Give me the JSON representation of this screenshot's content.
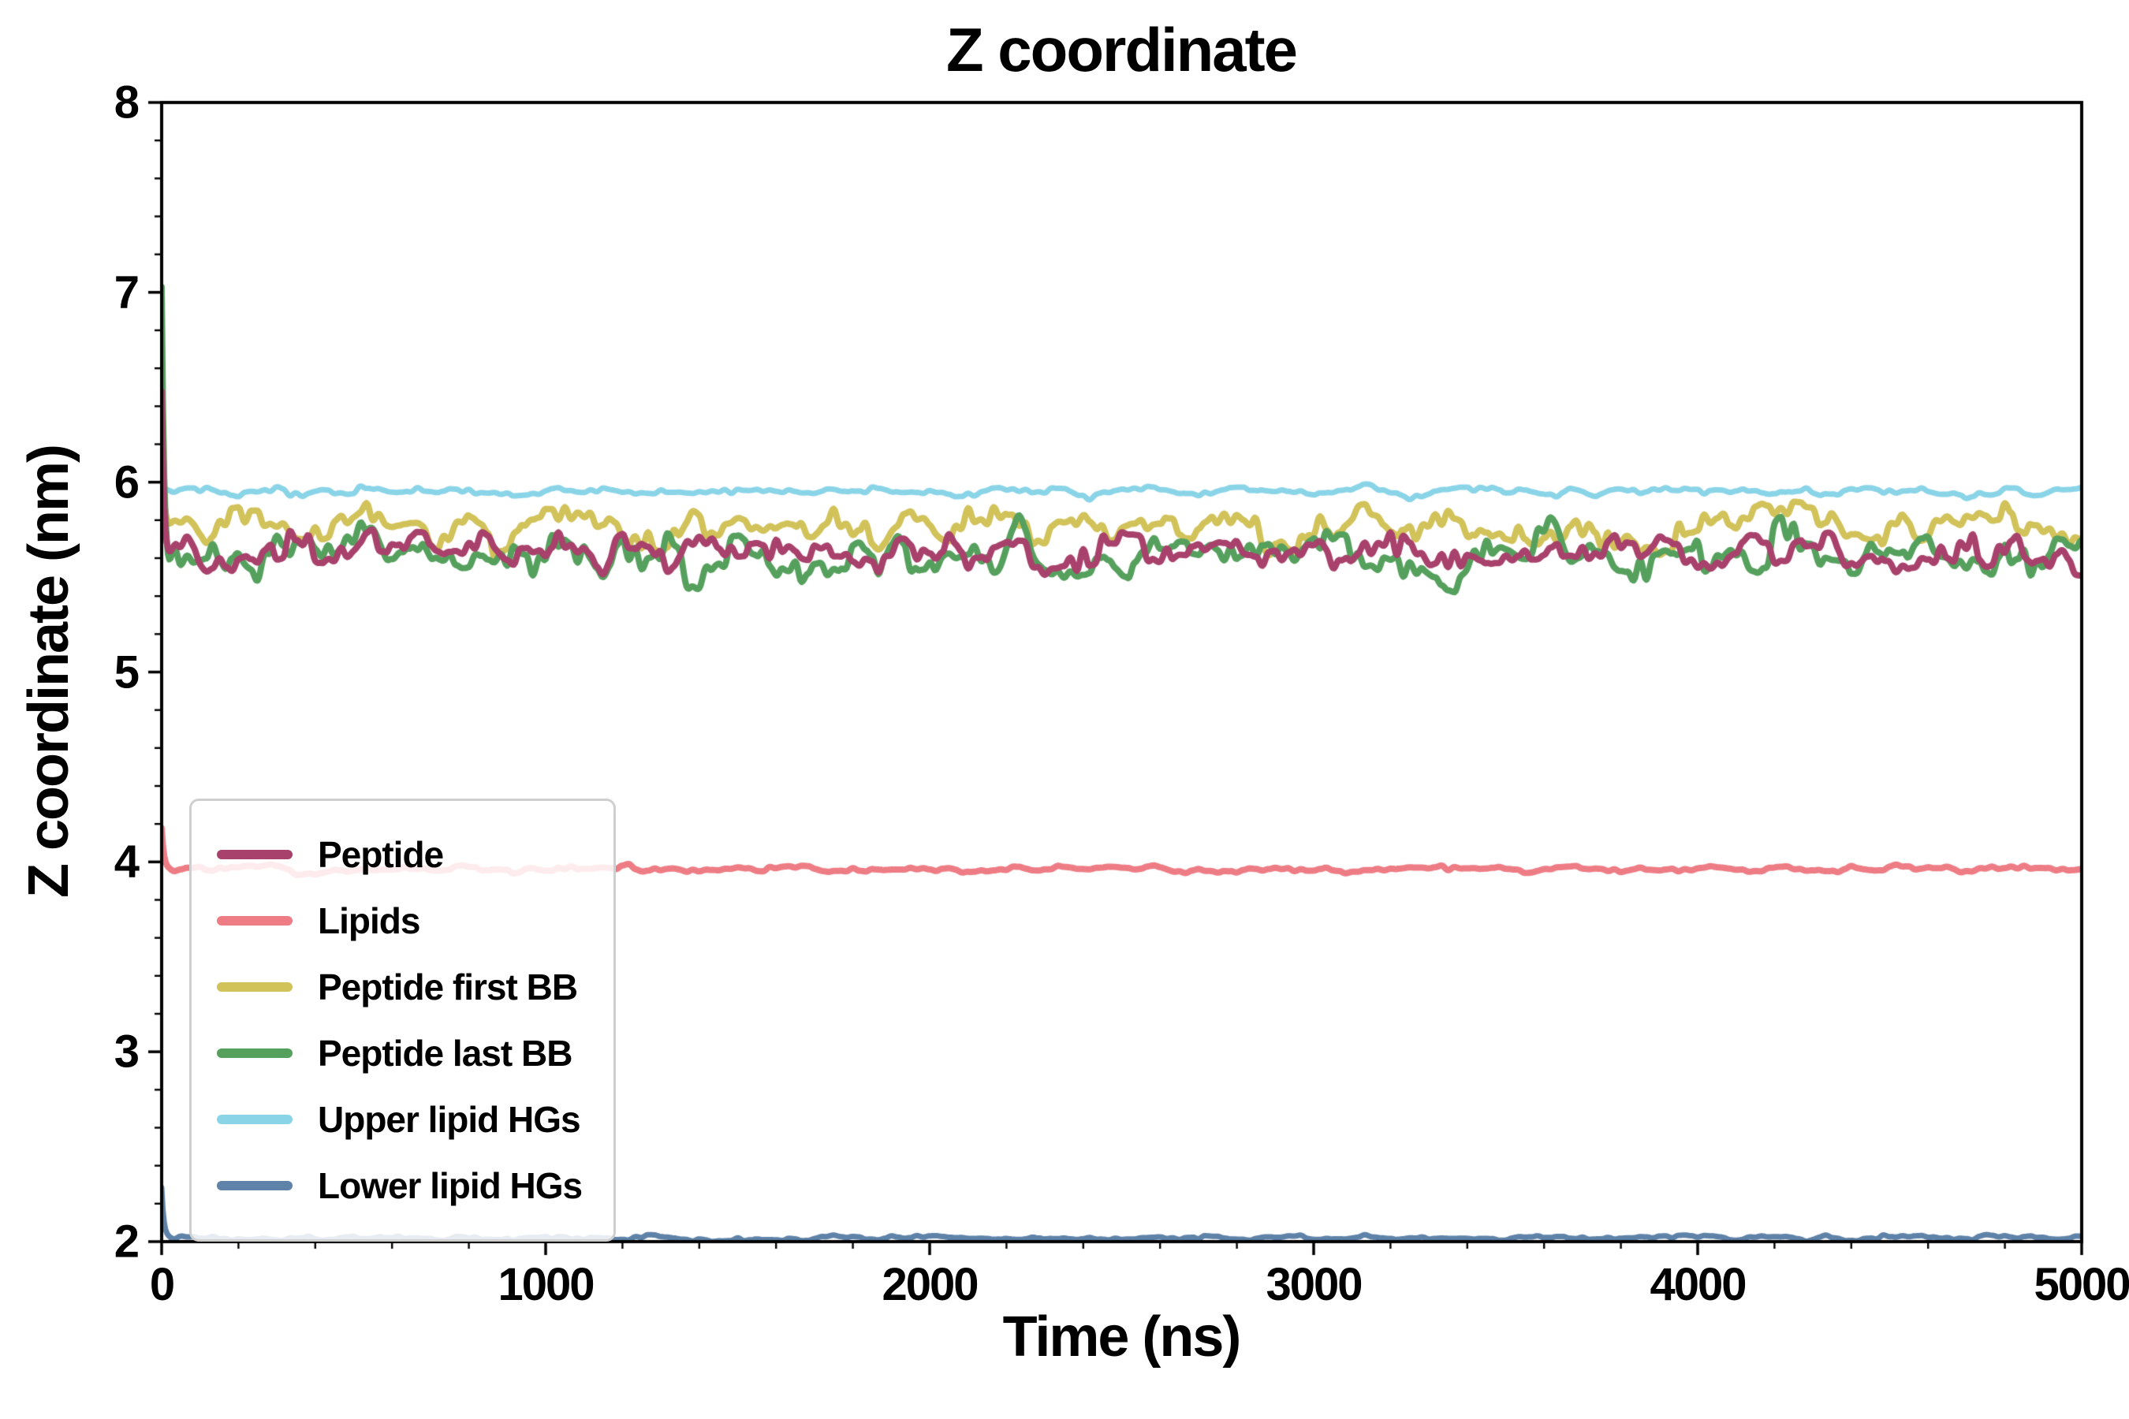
{
  "figure": {
    "background": "#ffffff",
    "axis_color": "#000000"
  },
  "chart_data": {
    "type": "line",
    "title": "Z coordinate",
    "xlabel": "Time (ns)",
    "ylabel": "Z coordinate (nm)",
    "xlim": [
      0,
      5000
    ],
    "ylim": [
      2,
      8
    ],
    "xticks": [
      0,
      1000,
      2000,
      3000,
      4000,
      5000
    ],
    "yticks": [
      2,
      3,
      4,
      5,
      6,
      7,
      8
    ],
    "x_minor_step": 200,
    "y_minor_step": 0.2,
    "grid": false,
    "legend_position": "lower-left",
    "series": [
      {
        "name": "Peptide",
        "color": "#a8416b",
        "mean": 5.63,
        "noise_amp": 0.085,
        "start_value": 6.55,
        "linewidth": 8,
        "z": 4
      },
      {
        "name": "Lipids",
        "color": "#ee7c85",
        "mean": 3.96,
        "noise_amp": 0.016,
        "start_value": 4.18,
        "linewidth": 8,
        "z": 5
      },
      {
        "name": "Peptide first BB",
        "color": "#d2c25a",
        "mean": 5.75,
        "noise_amp": 0.095,
        "start_value": 6.1,
        "linewidth": 8,
        "z": 2
      },
      {
        "name": "Peptide last BB",
        "color": "#56a05e",
        "mean": 5.6,
        "noise_amp": 0.105,
        "start_value": 7.1,
        "linewidth": 8,
        "z": 3
      },
      {
        "name": "Upper lipid HGs",
        "color": "#8ad4e8",
        "mean": 5.95,
        "noise_amp": 0.02,
        "start_value": 6.05,
        "linewidth": 7,
        "z": 1
      },
      {
        "name": "Lower lipid HGs",
        "color": "#5e82a8",
        "mean": 2.02,
        "noise_amp": 0.012,
        "start_value": 2.3,
        "linewidth": 7,
        "z": 0
      }
    ]
  }
}
